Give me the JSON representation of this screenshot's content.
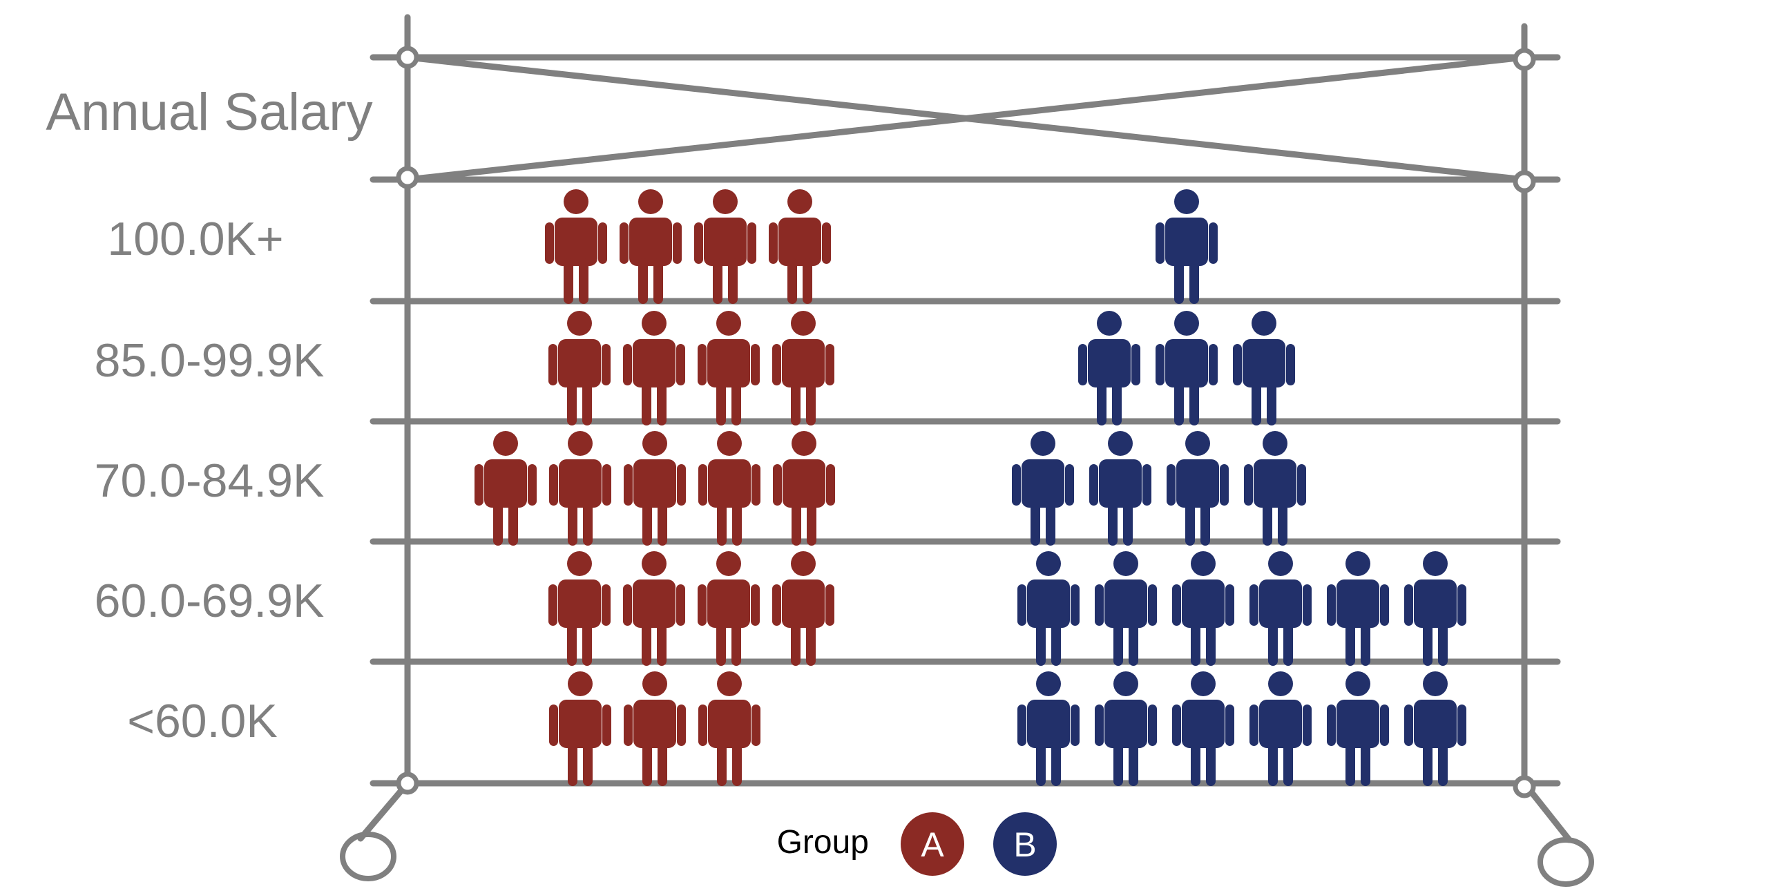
{
  "chart_data": {
    "type": "pictograph",
    "title": "Annual Salary",
    "categories": [
      "100.0K+",
      "85.0-99.9K",
      "70.0-84.9K",
      "60.0-69.9K",
      "<60.0K"
    ],
    "series": [
      {
        "name": "A",
        "values": [
          4,
          4,
          5,
          4,
          3
        ],
        "color": "#8B2A24"
      },
      {
        "name": "B",
        "values": [
          1,
          3,
          4,
          6,
          6
        ],
        "color": "#22306A"
      }
    ],
    "legend": {
      "title": "Group",
      "position": "bottom-center"
    },
    "frame_color": "#808080"
  }
}
